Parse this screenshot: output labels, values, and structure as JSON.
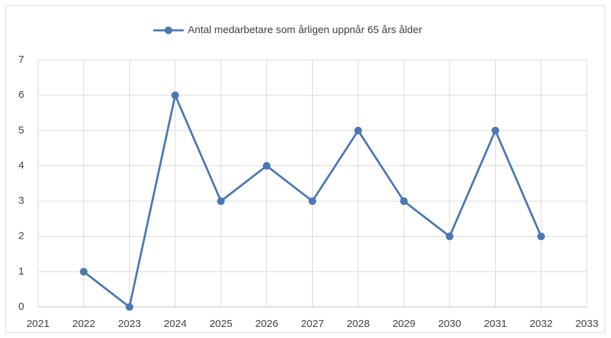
{
  "chart_data": {
    "type": "line",
    "x": [
      2022,
      2023,
      2024,
      2025,
      2026,
      2027,
      2028,
      2029,
      2030,
      2031,
      2032
    ],
    "series": [
      {
        "name": "Antal medarbetare som årligen uppnår 65 års ålder",
        "color": "#4a78b5",
        "values": [
          1,
          0,
          6,
          3,
          4,
          3,
          5,
          3,
          2,
          5,
          2
        ]
      }
    ],
    "xlim": [
      2021,
      2033
    ],
    "xticks": [
      2021,
      2022,
      2023,
      2024,
      2025,
      2026,
      2027,
      2028,
      2029,
      2030,
      2031,
      2032,
      2033
    ],
    "ylim": [
      0,
      7
    ],
    "yticks": [
      0,
      1,
      2,
      3,
      4,
      5,
      6,
      7
    ],
    "grid": true,
    "legend": "top"
  }
}
